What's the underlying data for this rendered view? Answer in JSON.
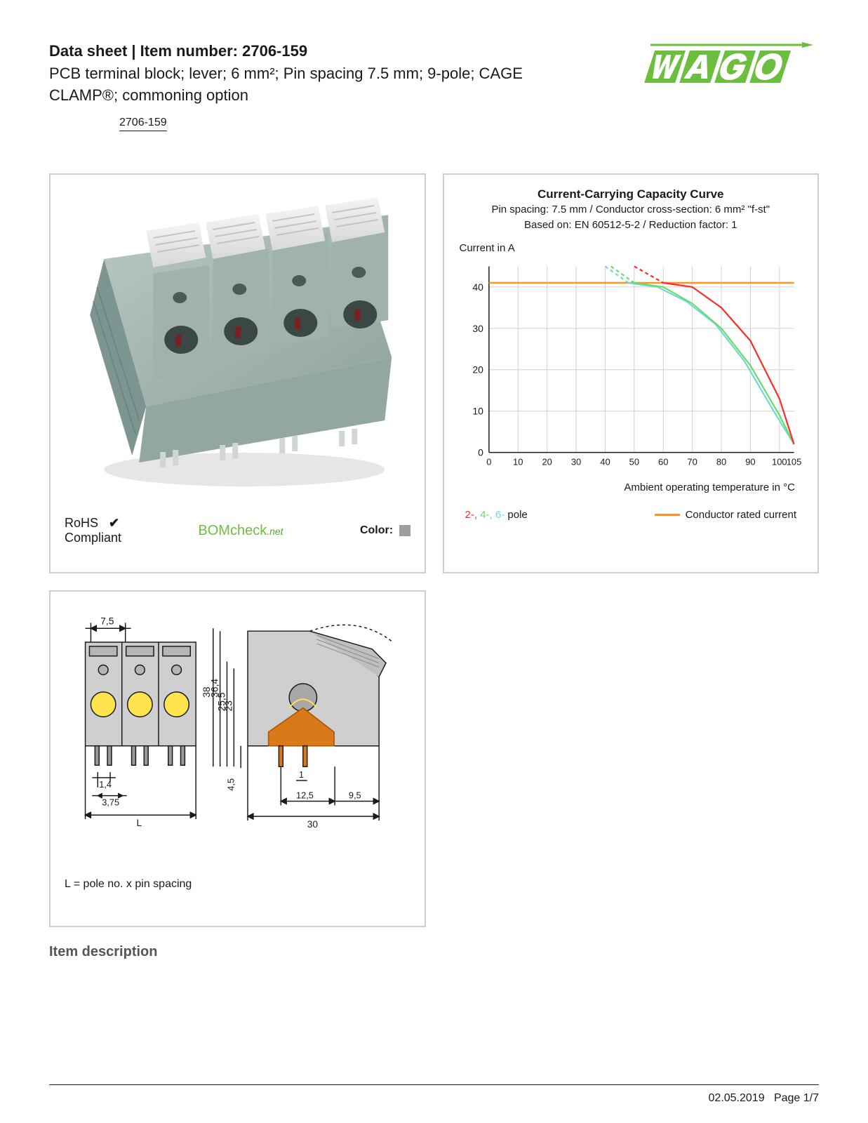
{
  "header": {
    "title_prefix": "Data sheet  |  Item number: ",
    "item_number": "2706-159",
    "subtitle": "PCB terminal block; lever; 6 mm²; Pin spacing 7.5 mm; 9-pole; CAGE CLAMP®; commoning option",
    "chip": "2706-159"
  },
  "logo": {
    "brand": "WAGO",
    "color": "#6cbf3e"
  },
  "product": {
    "rohs_line1": "RoHS",
    "rohs_line2": "Compliant",
    "checkmark": "✔",
    "bomcheck": "BOMcheck",
    "bomcheck_suffix": ".net",
    "color_label": "Color:",
    "swatch_color": "#9e9e9e",
    "body_color": "#a8bab5",
    "lever_color": "#e8e8e8",
    "shadow_color": "#7d9590"
  },
  "chart": {
    "title": "Current-Carrying Capacity Curve",
    "sub1": "Pin spacing: 7.5 mm / Conductor cross-section: 6 mm² \"f-st\"",
    "sub2": "Based on: EN 60512-5-2 / Reduction factor: 1",
    "ylabel": "Current in A",
    "xlabel": "Ambient operating temperature in °C",
    "xlim": [
      0,
      105
    ],
    "ylim": [
      0,
      45
    ],
    "xtick_step": 10,
    "ytick_step": 10,
    "xticks": [
      0,
      10,
      20,
      30,
      40,
      50,
      60,
      70,
      80,
      90,
      100,
      105
    ],
    "yticks": [
      0,
      10,
      20,
      30,
      40
    ],
    "grid_color": "#d0d0d0",
    "axis_color": "#1a1a1a",
    "background": "#ffffff",
    "rated_current": {
      "color": "#ff9420",
      "y": 41,
      "x_range": [
        0,
        105
      ]
    },
    "curves": {
      "pole2": {
        "color": "#ff2a2a",
        "solid": [
          [
            60,
            41
          ],
          [
            70,
            40
          ],
          [
            80,
            35
          ],
          [
            90,
            27
          ],
          [
            100,
            13
          ],
          [
            105,
            2
          ]
        ],
        "dashed": [
          [
            50,
            45
          ],
          [
            55,
            43
          ],
          [
            60,
            41
          ]
        ]
      },
      "pole4": {
        "color": "#6cd96c",
        "solid": [
          [
            50,
            41
          ],
          [
            60,
            40
          ],
          [
            70,
            36
          ],
          [
            80,
            30
          ],
          [
            90,
            21
          ],
          [
            100,
            9
          ],
          [
            105,
            2
          ]
        ],
        "dashed": [
          [
            42,
            45
          ],
          [
            46,
            43
          ],
          [
            50,
            41
          ]
        ]
      },
      "pole6": {
        "color": "#6bdcd3",
        "solid": [
          [
            48,
            41
          ],
          [
            58,
            40
          ],
          [
            68,
            36.5
          ],
          [
            78,
            31
          ],
          [
            88,
            22
          ],
          [
            98,
            10
          ],
          [
            105,
            2
          ]
        ],
        "dashed": [
          [
            40,
            45
          ],
          [
            44,
            43
          ],
          [
            48,
            41
          ]
        ]
      }
    },
    "legend": {
      "p2": "2-,",
      "p4": "4-,",
      "p6": "6-",
      "pole": " pole",
      "rated": "Conductor rated current"
    }
  },
  "dims": {
    "note": "L = pole no. x pin spacing",
    "labels": {
      "pitch": "7,5",
      "pin_w": "1,4",
      "pin_pitch": "3,75",
      "L": "L",
      "h38": "38",
      "h364": "36,4",
      "h255": "25,5",
      "h23": "23",
      "h45": "4,5",
      "d1": "1",
      "d125": "12,5",
      "d95": "9,5",
      "d30": "30"
    },
    "colors": {
      "outline": "#1a1a1a",
      "body": "#cfcfcf",
      "hole_fill": "#ffe44d",
      "section_fill": "#bfbfbf",
      "copper": "#d87a1a"
    }
  },
  "section_heading": "Item description",
  "footer": {
    "date": "02.05.2019",
    "page": "Page 1/7"
  }
}
